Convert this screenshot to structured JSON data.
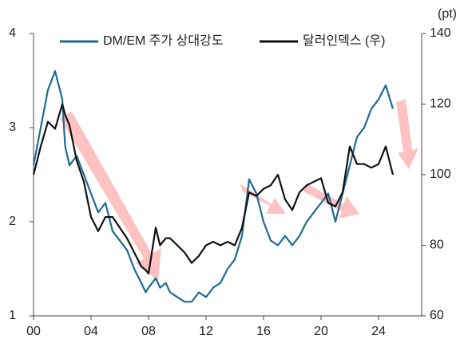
{
  "chart_data": {
    "type": "line",
    "y2_label": "(pt)",
    "xlim": [
      0,
      27
    ],
    "xticks": [
      {
        "value": 0,
        "label": "00"
      },
      {
        "value": 4,
        "label": "04"
      },
      {
        "value": 8,
        "label": "08"
      },
      {
        "value": 12,
        "label": "12"
      },
      {
        "value": 16,
        "label": "16"
      },
      {
        "value": 20,
        "label": "20"
      },
      {
        "value": 24,
        "label": "24"
      }
    ],
    "ylim": [
      1,
      4
    ],
    "yticks": [
      1,
      2,
      3,
      4
    ],
    "y2lim": [
      60,
      140
    ],
    "y2ticks": [
      60,
      80,
      100,
      120,
      140
    ],
    "legend": "top",
    "x": [
      0,
      0.5,
      1.0,
      1.5,
      2.0,
      2.2,
      2.5,
      3.0,
      3.5,
      4.0,
      4.5,
      5.0,
      5.5,
      6.0,
      6.5,
      7.0,
      7.5,
      7.8,
      8.0,
      8.5,
      8.8,
      9.2,
      9.5,
      10.0,
      10.5,
      11.0,
      11.5,
      12.0,
      12.5,
      13.0,
      13.5,
      14.0,
      14.5,
      15.0,
      15.5,
      16.0,
      16.5,
      17.0,
      17.5,
      18.0,
      18.5,
      19.0,
      19.5,
      20.0,
      20.5,
      21.0,
      21.5,
      22.0,
      22.5,
      23.0,
      23.5,
      24.0,
      24.5,
      25.0
    ],
    "series": [
      {
        "name": "DM/EM 주가 상대강도",
        "color": "#1f6a93",
        "axis": "y",
        "values": [
          2.6,
          3.0,
          3.4,
          3.6,
          3.3,
          2.8,
          2.6,
          2.7,
          2.5,
          2.3,
          2.1,
          2.2,
          1.9,
          1.8,
          1.7,
          1.5,
          1.35,
          1.25,
          1.3,
          1.4,
          1.3,
          1.35,
          1.25,
          1.2,
          1.15,
          1.15,
          1.25,
          1.2,
          1.3,
          1.35,
          1.5,
          1.6,
          1.85,
          2.45,
          2.3,
          2.0,
          1.8,
          1.75,
          1.85,
          1.75,
          1.85,
          2.0,
          2.1,
          2.2,
          2.3,
          2.0,
          2.3,
          2.6,
          2.9,
          3.0,
          3.2,
          3.3,
          3.45,
          3.2
        ]
      },
      {
        "name": "달러인덱스 (우)",
        "color": "#111111",
        "axis": "y2",
        "values": [
          100,
          108,
          115,
          113,
          120,
          117,
          114,
          104,
          98,
          88,
          84,
          88,
          88,
          85,
          82,
          78,
          74,
          73,
          72,
          85,
          80,
          82,
          82,
          80,
          78,
          75,
          77,
          80,
          81,
          80,
          81,
          80,
          85,
          95,
          94,
          96,
          97,
          100,
          93,
          90,
          95,
          97,
          98,
          99,
          92,
          91,
          95,
          108,
          103,
          103,
          102,
          103,
          108,
          100
        ]
      }
    ]
  }
}
